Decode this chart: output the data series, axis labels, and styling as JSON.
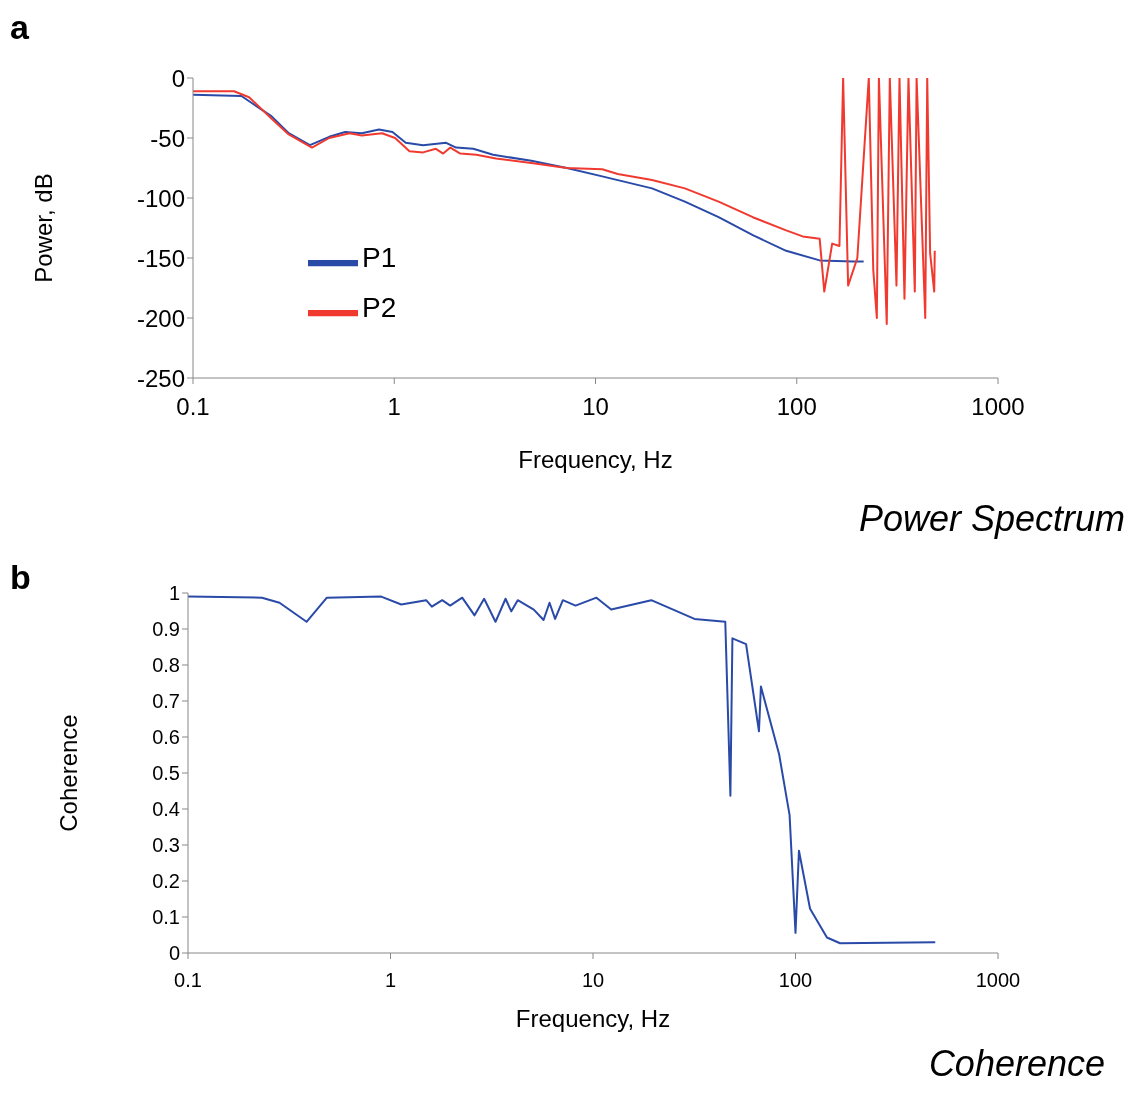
{
  "chart_data": [
    {
      "type": "line",
      "title": "Power Spectrum",
      "xlabel": "Frequency, Hz",
      "ylabel": "Power, dB",
      "annotations": [
        "a"
      ],
      "log": "x",
      "legend": "left",
      "line_style": "solid",
      "xlim": [
        0.1,
        1000
      ],
      "xticks": [
        0.1,
        1,
        10,
        100,
        1000
      ],
      "ylim": [
        -250,
        0
      ],
      "yticks": [
        0,
        -50,
        -100,
        -150,
        -200,
        -250
      ],
      "series": [
        {
          "name": "P1",
          "color": "#2a4aa8",
          "x": [
            0.1,
            0.174,
            0.246,
            0.299,
            0.381,
            0.475,
            0.57,
            0.69,
            0.84,
            0.98,
            1.14,
            1.39,
            1.81,
            2.03,
            2.47,
            3.1,
            4.8,
            7.2,
            10.8,
            19.1,
            27.8,
            40.9,
            60.5,
            88.6,
            130,
            191,
            215
          ],
          "values": [
            -14,
            -15,
            -32,
            -46,
            -56,
            -49,
            -45,
            -46,
            -43,
            -45,
            -54,
            -56,
            -54,
            -58,
            -59,
            -64,
            -69,
            -75,
            -82,
            -92,
            -103,
            -116,
            -131,
            -144,
            -152,
            -153,
            -153
          ]
        },
        {
          "name": "P2",
          "color": "#f03a30",
          "x": [
            0.1,
            0.16,
            0.19,
            0.246,
            0.299,
            0.39,
            0.475,
            0.6,
            0.69,
            0.87,
            1.01,
            1.19,
            1.39,
            1.61,
            1.75,
            1.9,
            2.13,
            2.56,
            3.2,
            4.9,
            7.2,
            10.8,
            12.9,
            19.1,
            27.8,
            40.9,
            60.5,
            88.6,
            107,
            130,
            137,
            150,
            163,
            170,
            180,
            200,
            228,
            240,
            250,
            256,
            280,
            290,
            313,
            324,
            343,
            359,
            386,
            394,
            435,
            445,
            460,
            482,
            485
          ],
          "values": [
            -11,
            -11,
            -16,
            -34,
            -47,
            -58,
            -50,
            -46,
            -48,
            -46,
            -50,
            -61,
            -62,
            -59,
            -63,
            -58,
            -63,
            -64,
            -67,
            -71,
            -75,
            -76,
            -80,
            -85,
            -92,
            -103,
            -116,
            -127,
            -132,
            -134,
            -178,
            -138,
            -140,
            0,
            -173,
            -150,
            0,
            -160,
            -200,
            0,
            -205,
            0,
            -173,
            0,
            -184,
            0,
            -178,
            0,
            -200,
            0,
            -146,
            -178,
            -144
          ]
        }
      ]
    },
    {
      "type": "line",
      "title": "Coherence",
      "xlabel": "Frequency, Hz",
      "ylabel": "Coherence",
      "annotations": [
        "b"
      ],
      "log": "x",
      "line_style": "solid",
      "xlim": [
        0.1,
        1000
      ],
      "xticks": [
        0.1,
        1,
        10,
        100,
        1000
      ],
      "ylim": [
        0,
        1
      ],
      "yticks": [
        0,
        0.1,
        0.2,
        0.3,
        0.4,
        0.5,
        0.6,
        0.7,
        0.8,
        0.9,
        1
      ],
      "series": [
        {
          "color": "#2a4aa8",
          "x": [
            0.1,
            0.232,
            0.283,
            0.385,
            0.485,
            0.9,
            1.13,
            1.5,
            1.6,
            1.8,
            1.97,
            2.26,
            2.6,
            2.9,
            3.3,
            3.7,
            3.95,
            4.25,
            5.1,
            5.7,
            6.1,
            6.5,
            7.1,
            8.2,
            10.4,
            12.3,
            19.4,
            31.7,
            45,
            47.7,
            48.8,
            57,
            66,
            67.5,
            83,
            93.5,
            100,
            104,
            118,
            143,
            166,
            490
          ],
          "values": [
            0.99,
            0.987,
            0.973,
            0.92,
            0.987,
            0.99,
            0.968,
            0.98,
            0.962,
            0.98,
            0.965,
            0.987,
            0.938,
            0.984,
            0.92,
            0.984,
            0.949,
            0.98,
            0.954,
            0.925,
            0.973,
            0.928,
            0.98,
            0.965,
            0.987,
            0.954,
            0.98,
            0.928,
            0.92,
            0.437,
            0.874,
            0.858,
            0.616,
            0.74,
            0.552,
            0.383,
            0.056,
            0.284,
            0.123,
            0.043,
            0.027,
            0.03
          ]
        }
      ]
    }
  ]
}
